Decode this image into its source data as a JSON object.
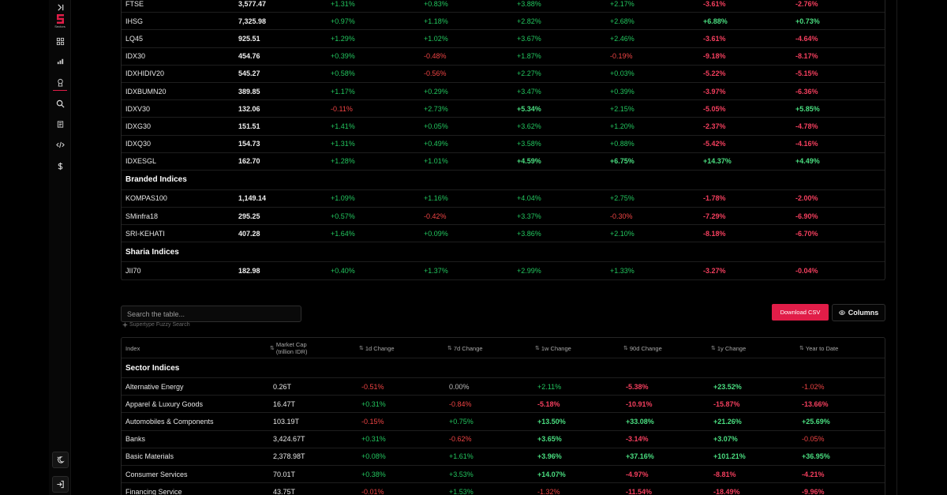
{
  "sidebar": {
    "logo_text": "Sectors",
    "icons": [
      "collapse-icon",
      "sectors-logo",
      "grid-icon",
      "bar-chart-icon",
      "award-icon",
      "search-icon",
      "book-icon",
      "code-icon",
      "dollar-icon"
    ],
    "bottom_icons": [
      "theme-toggle-icon",
      "login-icon"
    ]
  },
  "table_indices": {
    "sections": [
      {
        "title": "",
        "rows": [
          {
            "name": "FTSE",
            "value": "3,577.47",
            "d1": "+1.31%",
            "d7": "+0.83%",
            "w1": "+3.88%",
            "d90": "+2.17%",
            "y1": "-3.61%",
            "ytd": "-2.76%"
          },
          {
            "name": "IHSG",
            "value": "7,325.98",
            "d1": "+0.97%",
            "d7": "+1.18%",
            "w1": "+2.82%",
            "d90": "+2.68%",
            "y1": "+6.88%",
            "ytd": "+0.73%"
          },
          {
            "name": "LQ45",
            "value": "925.51",
            "d1": "+1.29%",
            "d7": "+1.02%",
            "w1": "+3.67%",
            "d90": "+2.46%",
            "y1": "-3.61%",
            "ytd": "-4.64%"
          },
          {
            "name": "IDX30",
            "value": "454.76",
            "d1": "+0.39%",
            "d7": "-0.48%",
            "w1": "+1.87%",
            "d90": "-0.19%",
            "y1": "-9.18%",
            "ytd": "-8.17%"
          },
          {
            "name": "IDXHIDIV20",
            "value": "545.27",
            "d1": "+0.58%",
            "d7": "-0.56%",
            "w1": "+2.27%",
            "d90": "+0.03%",
            "y1": "-5.22%",
            "ytd": "-5.15%"
          },
          {
            "name": "IDXBUMN20",
            "value": "389.85",
            "d1": "+1.17%",
            "d7": "+0.29%",
            "w1": "+3.47%",
            "d90": "+0.39%",
            "y1": "-3.97%",
            "ytd": "-6.36%"
          },
          {
            "name": "IDXV30",
            "value": "132.06",
            "d1": "-0.11%",
            "d7": "+2.73%",
            "w1": "+5.34%",
            "d90": "+2.15%",
            "y1": "-5.05%",
            "ytd": "+5.85%"
          },
          {
            "name": "IDXG30",
            "value": "151.51",
            "d1": "+1.41%",
            "d7": "+0.05%",
            "w1": "+3.62%",
            "d90": "+1.20%",
            "y1": "-2.37%",
            "ytd": "-4.78%"
          },
          {
            "name": "IDXQ30",
            "value": "154.73",
            "d1": "+1.31%",
            "d7": "+0.49%",
            "w1": "+3.58%",
            "d90": "+0.88%",
            "y1": "-5.42%",
            "ytd": "-4.16%"
          },
          {
            "name": "IDXESGL",
            "value": "162.70",
            "d1": "+1.28%",
            "d7": "+1.01%",
            "w1": "+4.59%",
            "d90": "+6.75%",
            "y1": "+14.37%",
            "ytd": "+4.49%"
          }
        ]
      },
      {
        "title": "Branded Indices",
        "rows": [
          {
            "name": "KOMPAS100",
            "value": "1,149.14",
            "d1": "+1.09%",
            "d7": "+1.16%",
            "w1": "+4.04%",
            "d90": "+2.75%",
            "y1": "-1.78%",
            "ytd": "-2.00%"
          },
          {
            "name": "SMinfra18",
            "value": "295.25",
            "d1": "+0.57%",
            "d7": "-0.42%",
            "w1": "+3.37%",
            "d90": "-0.30%",
            "y1": "-7.29%",
            "ytd": "-6.90%"
          },
          {
            "name": "SRI-KEHATI",
            "value": "407.28",
            "d1": "+1.64%",
            "d7": "+0.09%",
            "w1": "+3.86%",
            "d90": "+2.10%",
            "y1": "-8.18%",
            "ytd": "-6.70%"
          }
        ]
      },
      {
        "title": "Sharia Indices",
        "rows": [
          {
            "name": "JII70",
            "value": "182.98",
            "d1": "+0.40%",
            "d7": "+1.37%",
            "w1": "+2.99%",
            "d90": "+1.33%",
            "y1": "-3.27%",
            "ytd": "-0.04%"
          }
        ]
      }
    ]
  },
  "controls": {
    "search_placeholder": "Search the table...",
    "search_hint": "Supertype Fuzzy Search",
    "download_csv_label": "Download CSV",
    "columns_label": "Columns"
  },
  "table_sectors": {
    "headers": {
      "index": "Index",
      "market_cap_line1": "Market Cap",
      "market_cap_line2": "(trillion IDR)",
      "d1": "1d Change",
      "d7": "7d Change",
      "w1": "1w Change",
      "d90": "90d Change",
      "y1": "1y Change",
      "ytd": "Year to Date"
    },
    "section_title": "Sector Indices",
    "rows": [
      {
        "name": "Alternative Energy",
        "mcap": "0.26T",
        "d1": "-0.51%",
        "d7": "0.00%",
        "w1": "+2.11%",
        "d90": "-5.38%",
        "y1": "+23.52%",
        "ytd": "-1.02%"
      },
      {
        "name": "Apparel & Luxury Goods",
        "mcap": "16.47T",
        "d1": "+0.31%",
        "d7": "-0.84%",
        "w1": "-5.18%",
        "d90": "-10.91%",
        "y1": "-15.87%",
        "ytd": "-13.66%"
      },
      {
        "name": "Automobiles & Components",
        "mcap": "103.19T",
        "d1": "-0.15%",
        "d7": "+0.75%",
        "w1": "+13.50%",
        "d90": "+33.08%",
        "y1": "+21.26%",
        "ytd": "+25.69%"
      },
      {
        "name": "Banks",
        "mcap": "3,424.67T",
        "d1": "+0.31%",
        "d7": "-0.62%",
        "w1": "+3.65%",
        "d90": "-3.14%",
        "y1": "+3.07%",
        "ytd": "-0.05%"
      },
      {
        "name": "Basic Materials",
        "mcap": "2,378.98T",
        "d1": "+0.08%",
        "d7": "+1.61%",
        "w1": "+3.96%",
        "d90": "+37.16%",
        "y1": "+101.21%",
        "ytd": "+36.95%"
      },
      {
        "name": "Consumer Services",
        "mcap": "70.01T",
        "d1": "+0.38%",
        "d7": "+3.53%",
        "w1": "+14.07%",
        "d90": "-4.97%",
        "y1": "-8.81%",
        "ytd": "-4.21%"
      },
      {
        "name": "Financing Service",
        "mcap": "43.75T",
        "d1": "-0.01%",
        "d7": "+1.53%",
        "w1": "-1.32%",
        "d90": "-11.54%",
        "y1": "-18.49%",
        "ytd": "-9.96%"
      }
    ]
  }
}
